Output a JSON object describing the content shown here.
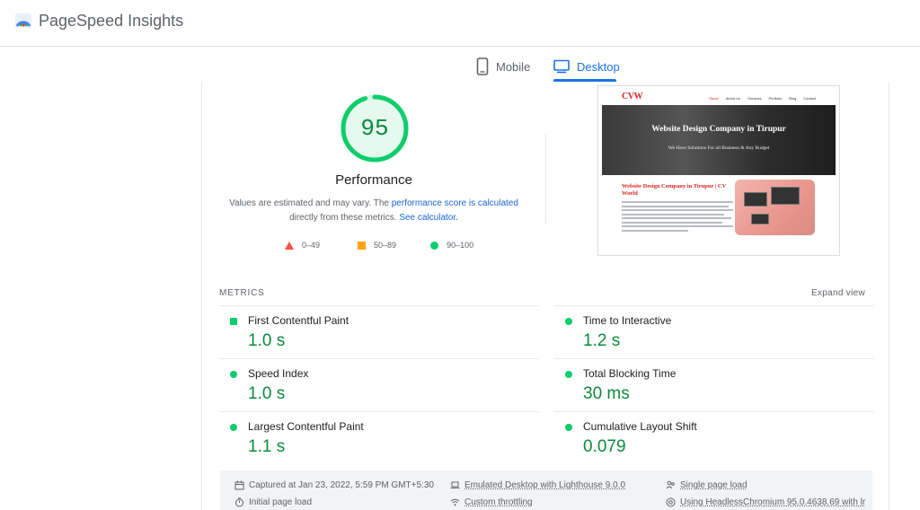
{
  "app": {
    "title": "PageSpeed Insights",
    "logo_icon": "pagespeed-logo-icon"
  },
  "tabs": [
    {
      "label": "Mobile",
      "icon": "mobile-phone-icon",
      "active": false
    },
    {
      "label": "Desktop",
      "icon": "desktop-monitor-icon",
      "active": true
    }
  ],
  "colors": {
    "accent": "#1a73e8",
    "pass": "#0cce6b",
    "pass_text": "#0c8a3f",
    "average": "#ffa400",
    "fail": "#ff4e42"
  },
  "performance": {
    "score": "95",
    "score_value": 95,
    "title": "Performance",
    "desc_part1": "Values are estimated and may vary. The ",
    "desc_link1": "performance score is calculated",
    "desc_part2": " directly from these metrics. ",
    "desc_link2": "See calculator."
  },
  "legend": [
    {
      "label": "0–49",
      "icon": "triangle-fail-icon"
    },
    {
      "label": "50–89",
      "icon": "square-average-icon"
    },
    {
      "label": "90–100",
      "icon": "circle-pass-icon"
    }
  ],
  "preview": {
    "logo": "CVW",
    "menu": [
      "Home",
      "About Us",
      "Services",
      "Portfolio",
      "Blog",
      "Contact"
    ],
    "hero_title": "Website Design Company in Tirupur",
    "hero_subtitle": "We Have Solutions For all Business & Any Budget",
    "body_title": "Website Design Company in Tirupur | CV World"
  },
  "metrics": {
    "header": "METRICS",
    "expand": "Expand view",
    "items": [
      {
        "label": "First Contentful Paint",
        "value": "1.0 s",
        "icon": "square-pass-icon"
      },
      {
        "label": "Time to Interactive",
        "value": "1.2 s",
        "icon": "circle-pass-icon"
      },
      {
        "label": "Speed Index",
        "value": "1.0 s",
        "icon": "circle-pass-icon"
      },
      {
        "label": "Total Blocking Time",
        "value": "30 ms",
        "icon": "circle-pass-icon"
      },
      {
        "label": "Largest Contentful Paint",
        "value": "1.1 s",
        "icon": "circle-pass-icon"
      },
      {
        "label": "Cumulative Layout Shift",
        "value": "0.079",
        "icon": "circle-pass-icon"
      }
    ]
  },
  "footer": {
    "captured": "Captured at Jan 23, 2022, 5:59 PM GMT+5:30",
    "emulated": "Emulated Desktop with Lighthouse 9.0.0",
    "single_page": "Single page load",
    "initial_load": "Initial page load",
    "throttling": "Custom throttling",
    "browser": "Using HeadlessChromium 95.0.4638.69 with lr"
  }
}
